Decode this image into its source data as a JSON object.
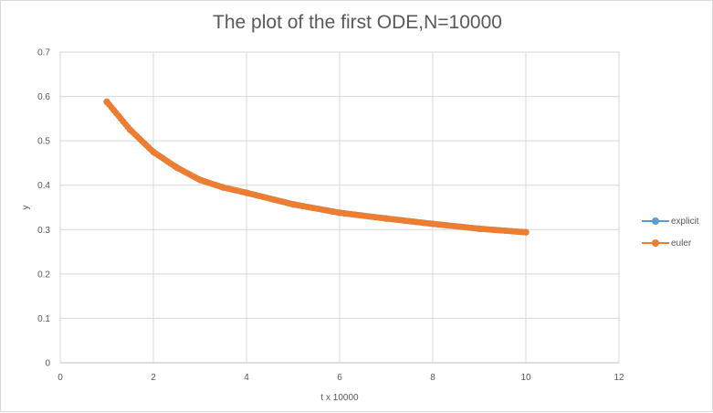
{
  "chart_data": {
    "type": "scatter",
    "title": "The plot of the first ODE,N=10000",
    "xlabel": "t x 10000",
    "ylabel": "y",
    "xlim": [
      0,
      12
    ],
    "ylim": [
      0,
      0.7
    ],
    "x_ticks": [
      "0",
      "2",
      "4",
      "6",
      "8",
      "10",
      "12"
    ],
    "y_ticks": [
      "0",
      "0.1",
      "0.2",
      "0.3",
      "0.4",
      "0.5",
      "0.6",
      "0.7"
    ],
    "grid": true,
    "legend_position": "right",
    "series": [
      {
        "name": "explicit",
        "color": "#5b9bd5",
        "x": [
          1,
          1.5,
          2,
          2.5,
          3,
          3.5,
          4,
          5,
          6,
          7,
          8,
          9,
          10
        ],
        "y": [
          0.588,
          0.525,
          0.475,
          0.44,
          0.412,
          0.395,
          0.383,
          0.357,
          0.338,
          0.325,
          0.313,
          0.302,
          0.294
        ]
      },
      {
        "name": "euler",
        "color": "#ed7d31",
        "x": [
          1,
          1.5,
          2,
          2.5,
          3,
          3.5,
          4,
          5,
          6,
          7,
          8,
          9,
          10
        ],
        "y": [
          0.588,
          0.525,
          0.475,
          0.44,
          0.412,
          0.395,
          0.383,
          0.357,
          0.338,
          0.325,
          0.313,
          0.302,
          0.294
        ]
      }
    ]
  }
}
